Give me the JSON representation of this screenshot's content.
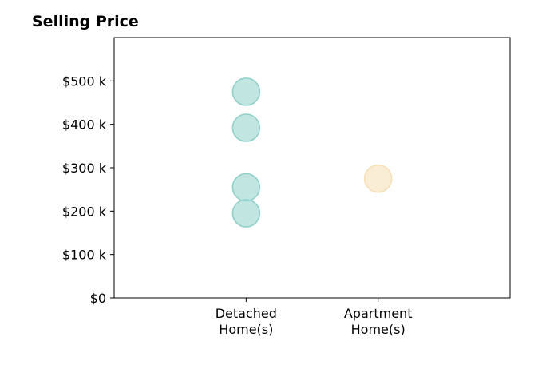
{
  "chart_data": {
    "type": "scatter",
    "title": "Selling Price",
    "xlabel": "",
    "ylabel": "",
    "categories": [
      [
        "Detached",
        "Home(s)"
      ],
      [
        "Apartment",
        "Home(s)"
      ]
    ],
    "xlim": [
      -1,
      2
    ],
    "ylim": [
      0,
      600000
    ],
    "yticks": [
      0,
      100000,
      200000,
      300000,
      400000,
      500000
    ],
    "ytick_labels": [
      "$0",
      "$100 k",
      "$200 k",
      "$300 k",
      "$400 k",
      "$500 k"
    ],
    "grid": false,
    "series": [
      {
        "category_index": 0,
        "color": "#8ecfc9",
        "values": [
          475000,
          392000,
          255000,
          195000
        ]
      },
      {
        "category_index": 1,
        "color": "#f5deb3",
        "values": [
          275000
        ]
      }
    ]
  }
}
